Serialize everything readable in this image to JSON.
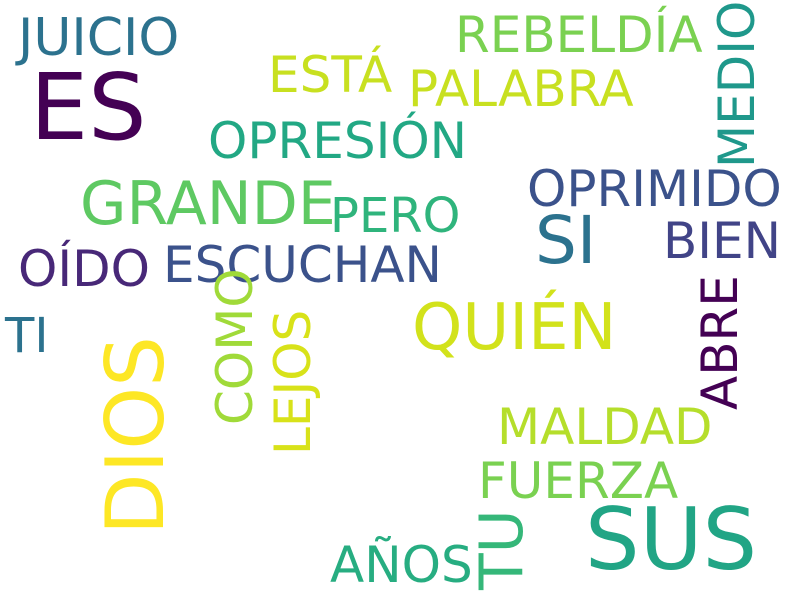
{
  "background_color": "#ffffff",
  "words": {
    "juicio": {
      "text": "JUICIO",
      "color": "#2c728e"
    },
    "es": {
      "text": "ES",
      "color": "#440154"
    },
    "esta": {
      "text": "ESTÁ",
      "color": "#c8e020"
    },
    "rebeldia": {
      "text": "REBELDÍA",
      "color": "#7ad151"
    },
    "palabra": {
      "text": "PALABRA",
      "color": "#c8e020"
    },
    "opresion": {
      "text": "OPRESIÓN",
      "color": "#22a884"
    },
    "grande": {
      "text": "GRANDE",
      "color": "#5ec962"
    },
    "pero": {
      "text": "PERO",
      "color": "#2fb47c"
    },
    "oprimido": {
      "text": "OPRIMIDO",
      "color": "#3b528b"
    },
    "si": {
      "text": "SI",
      "color": "#2c728e"
    },
    "bien": {
      "text": "BIEN",
      "color": "#414487"
    },
    "oido": {
      "text": "OÍDO",
      "color": "#482878"
    },
    "escuchan": {
      "text": "ESCUCHAN",
      "color": "#3b528b"
    },
    "ti": {
      "text": "TI",
      "color": "#2c728e"
    },
    "quien": {
      "text": "QUIÉN",
      "color": "#d2e21b"
    },
    "maldad": {
      "text": "MALDAD",
      "color": "#b5de2b"
    },
    "fuerza": {
      "text": "FUERZA",
      "color": "#7ad151"
    },
    "anos": {
      "text": "AÑOS",
      "color": "#27ad81"
    },
    "sus": {
      "text": "SUS",
      "color": "#21a585"
    },
    "medio": {
      "text": "MEDIO",
      "color": "#1f988b"
    },
    "abre": {
      "text": "ABRE",
      "color": "#440154"
    },
    "dios": {
      "text": "DIOS",
      "color": "#fde725"
    },
    "como": {
      "text": "COMO",
      "color": "#a0da39"
    },
    "lejos": {
      "text": "LEJOS",
      "color": "#d8e219"
    },
    "tu": {
      "text": "TU",
      "color": "#35b779"
    }
  }
}
